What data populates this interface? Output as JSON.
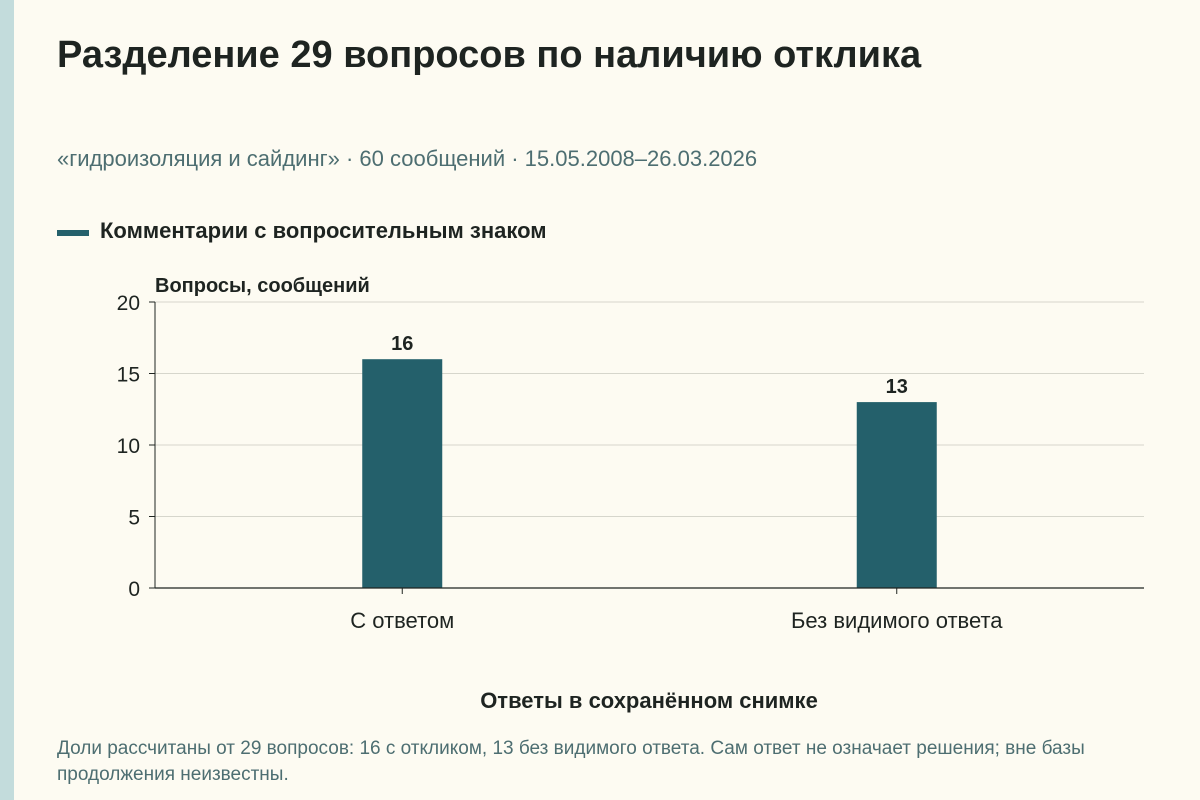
{
  "header": {
    "title": "Разделение 29 вопросов по наличию отклика",
    "subtitle": "«гидроизоляция и сайдинг» · 60 сообщений · 15.05.2008–26.03.2026"
  },
  "footnote": "Доли рассчитаны от 29 вопросов: 16 с откликом, 13 без видимого ответа. Сам ответ не означает решения; вне базы продолжения неизвестны.",
  "colors": {
    "bar": "#24606b",
    "background": "#fdfbf2",
    "accent_stripe": "#c3dcdc"
  },
  "chart_data": {
    "type": "bar",
    "categories": [
      "С ответом",
      "Без видимого ответа"
    ],
    "series": [
      {
        "name": "Комментарии с вопросительным знаком",
        "values": [
          16,
          13
        ]
      }
    ],
    "data_labels": [
      "16",
      "13"
    ],
    "xlabel": "Ответы в сохранённом снимке",
    "ylabel": "Вопросы, сообщений",
    "ylim": [
      0,
      20
    ],
    "yticks": [
      0,
      5,
      10,
      15,
      20
    ],
    "grid": true,
    "legend_position": "top-left"
  }
}
